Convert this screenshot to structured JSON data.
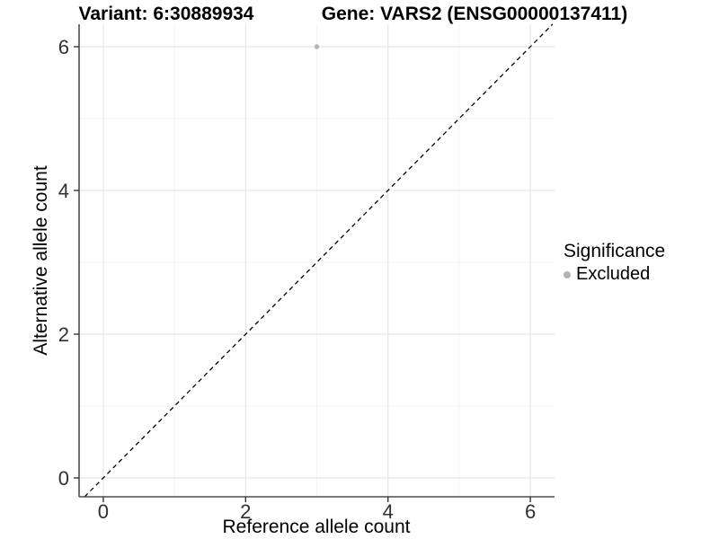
{
  "chart_data": {
    "type": "scatter",
    "title_left": "Variant: 6:30889934",
    "title_right": "Gene: VARS2 (ENSG00000137411)",
    "xlabel": "Reference allele count",
    "ylabel": "Alternative allele count",
    "x_ticks": [
      0,
      2,
      4,
      6
    ],
    "y_ticks": [
      0,
      2,
      4,
      6
    ],
    "x_minor_grid": [
      1,
      3,
      5
    ],
    "y_minor_grid": [
      1,
      3,
      5
    ],
    "xlim": [
      -0.34,
      6.34
    ],
    "ylim": [
      -0.2625,
      6.3125
    ],
    "grid": "on",
    "legend_position": "right",
    "identity_line": {
      "equation": "y = x",
      "style": "dashed",
      "color": "#000000"
    },
    "series": [
      {
        "name": "Excluded",
        "color": "#b4b4b4",
        "points": [
          {
            "x": 3,
            "y": 6
          }
        ]
      }
    ],
    "legend": {
      "title": "Significance",
      "entries": [
        {
          "label": "Excluded",
          "color": "#b4b4b4"
        }
      ]
    },
    "colors": {
      "major_grid": "#e7e7e7",
      "minor_grid": "#f2f2f2",
      "axis_line": "#4d4d4d",
      "tick_mark": "#333333",
      "point": "#b4b4b4"
    }
  }
}
